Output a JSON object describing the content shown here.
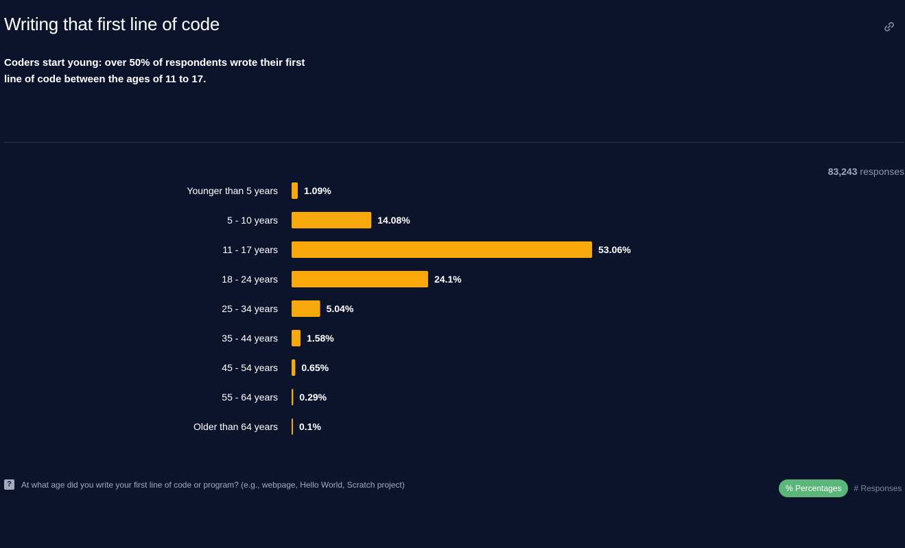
{
  "header": {
    "title": "Writing that first line of code",
    "subtitle": "Coders start young: over 50% of respondents wrote their first line of code between the ages of 11 to 17.",
    "link_icon": "link-icon"
  },
  "responses": {
    "count": "83,243",
    "label": "responses"
  },
  "footer": {
    "question_icon": "question-icon",
    "question": "At what age did you write your first line of code or program? (e.g., webpage, Hello World, Scratch project)",
    "toggle_percentages": "% Percentages",
    "toggle_responses": "# Responses"
  },
  "colors": {
    "background": "#0c142c",
    "bar": "#f9a80c",
    "toggle_active": "#5bb679"
  },
  "chart_data": {
    "type": "bar",
    "orientation": "horizontal",
    "categories": [
      "Younger than 5 years",
      "5 - 10 years",
      "11 - 17 years",
      "18 - 24 years",
      "25 - 34 years",
      "35 - 44 years",
      "45 - 54 years",
      "55 - 64 years",
      "Older than 64 years"
    ],
    "values": [
      1.09,
      14.08,
      53.06,
      24.1,
      5.04,
      1.58,
      0.65,
      0.29,
      0.1
    ],
    "value_labels": [
      "1.09%",
      "14.08%",
      "53.06%",
      "24.1%",
      "5.04%",
      "1.58%",
      "0.65%",
      "0.29%",
      "0.1%"
    ],
    "unit": "%",
    "grid": false,
    "legend": "none"
  }
}
